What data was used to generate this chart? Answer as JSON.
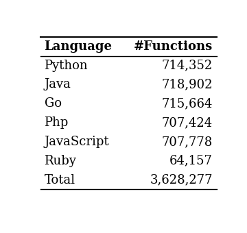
{
  "columns": [
    "Language",
    "#Functions"
  ],
  "rows": [
    [
      "Python",
      "714,352"
    ],
    [
      "Java",
      "718,902"
    ],
    [
      "Go",
      "715,664"
    ],
    [
      "Php",
      "707,424"
    ],
    [
      "JavaScript",
      "707,778"
    ],
    [
      "Ruby",
      "64,157"
    ],
    [
      "Total",
      "3,628,277"
    ]
  ],
  "background_color": "#ffffff",
  "header_fontsize": 13,
  "cell_fontsize": 13,
  "header_fontweight": "bold",
  "cell_fontweight": "normal"
}
